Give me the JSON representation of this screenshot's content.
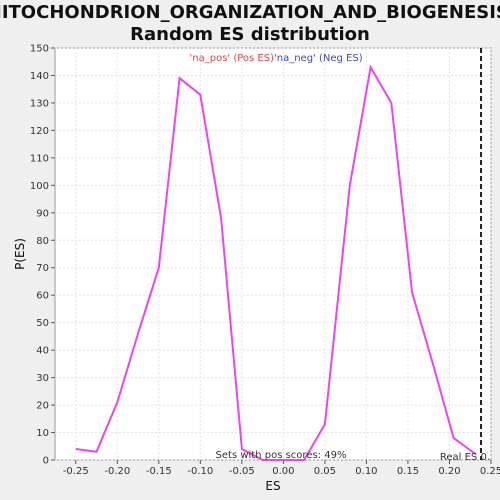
{
  "chart_data": {
    "type": "line",
    "title_line1": "MITOCHONDRION_ORGANIZATION_AND_BIOGENESIS:",
    "title_line2": "Random ES distribution",
    "xlabel": "ES",
    "ylabel": "P(ES)",
    "xlim": [
      -0.275,
      0.25
    ],
    "ylim": [
      0,
      150
    ],
    "grid": true,
    "x_ticks": [
      -0.25,
      -0.2,
      -0.15,
      -0.1,
      -0.05,
      0.0,
      0.05,
      0.1,
      0.15,
      0.2,
      0.25
    ],
    "x_tick_labels": [
      "-0.25",
      "-0.20",
      "-0.15",
      "-0.10",
      "-0.05",
      "0.00",
      "0.05",
      "0.10",
      "0.15",
      "0.20",
      "0.25"
    ],
    "y_ticks": [
      0,
      10,
      20,
      30,
      40,
      50,
      60,
      70,
      80,
      90,
      100,
      110,
      120,
      130,
      140,
      150
    ],
    "series": [
      {
        "color": "#ee44ee",
        "x": [
          -0.25,
          -0.225,
          -0.2,
          -0.175,
          -0.15,
          -0.125,
          -0.1,
          -0.075,
          -0.05,
          -0.025,
          0.0,
          0.025,
          0.05,
          0.08,
          0.105,
          0.13,
          0.155,
          0.18,
          0.205,
          0.232
        ],
        "y": [
          4,
          3,
          21,
          46,
          70,
          139,
          133,
          88,
          4,
          0,
          0,
          0,
          13,
          100,
          143,
          130,
          61,
          35,
          8,
          2
        ]
      }
    ],
    "legend": [
      {
        "label": "'na_pos' (Pos ES)",
        "color": "#ee4444"
      },
      {
        "label": "'na_neg' (Neg ES)",
        "color": "#4444cc"
      }
    ],
    "legend_position": "top-center",
    "annotation": "Sets with pos scores: 49%",
    "real_es_value": 0.238,
    "real_es_label": "Real ES 0."
  }
}
